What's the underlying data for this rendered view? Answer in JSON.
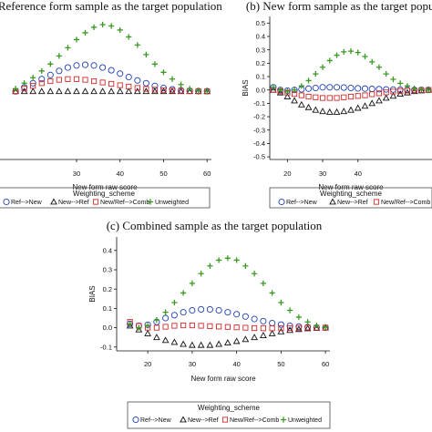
{
  "chart_data": [
    {
      "id": "a",
      "type": "scatter",
      "title": "(a) Reference form sample as the target population",
      "xlabel": "New form raw score",
      "ylabel": "",
      "xticks": [
        30,
        40,
        50,
        60
      ],
      "yticks": [],
      "xlim": [
        12,
        61
      ],
      "ylim": [
        -0.5,
        0.55
      ],
      "legend_title": "Weighting_scheme",
      "legend_position": "bottom",
      "legend": [
        "Ref-->New",
        "New-->Ref",
        "New/Ref-->Comb",
        "Unweighted"
      ],
      "x": [
        16,
        18,
        20,
        22,
        24,
        26,
        28,
        30,
        32,
        34,
        36,
        38,
        40,
        42,
        44,
        46,
        48,
        50,
        52,
        54,
        56,
        58,
        60
      ],
      "series": [
        {
          "name": "Ref-->New",
          "marker": "circle",
          "color": "#1f3fb8",
          "values": [
            0.0,
            0.03,
            0.06,
            0.09,
            0.12,
            0.15,
            0.175,
            0.19,
            0.195,
            0.19,
            0.175,
            0.155,
            0.13,
            0.105,
            0.08,
            0.06,
            0.04,
            0.025,
            0.015,
            0.008,
            0.004,
            0.002,
            0.001
          ]
        },
        {
          "name": "New-->Ref",
          "marker": "triangle",
          "color": "#111111",
          "values": [
            0.0,
            0.0,
            0.0,
            0.0,
            0.0,
            0.0,
            0.0,
            0.0,
            0.0,
            0.0,
            0.0,
            0.0,
            0.0,
            0.0,
            0.0,
            0.0,
            0.0,
            0.0,
            0.0,
            0.0,
            0.0,
            0.0,
            0.0
          ]
        },
        {
          "name": "New/Ref-->Comb",
          "marker": "square",
          "color": "#d02a2a",
          "values": [
            0.0,
            0.02,
            0.04,
            0.06,
            0.075,
            0.085,
            0.09,
            0.09,
            0.085,
            0.075,
            0.065,
            0.055,
            0.045,
            0.035,
            0.025,
            0.018,
            0.012,
            0.008,
            0.005,
            0.003,
            0.002,
            0.001,
            0.0
          ]
        },
        {
          "name": "Unweighted",
          "marker": "plus",
          "color": "#3a9a22",
          "values": [
            0.02,
            0.06,
            0.1,
            0.15,
            0.2,
            0.26,
            0.32,
            0.38,
            0.43,
            0.47,
            0.49,
            0.48,
            0.45,
            0.4,
            0.34,
            0.27,
            0.2,
            0.14,
            0.09,
            0.05,
            0.02,
            0.005,
            0.0
          ]
        }
      ]
    },
    {
      "id": "b",
      "type": "scatter",
      "title": "(b) New form sample as the target population",
      "xlabel": "New form raw score",
      "ylabel": "BIAS",
      "xticks": [
        20,
        30,
        40
      ],
      "yticks": [
        -0.5,
        -0.4,
        -0.3,
        -0.2,
        -0.1,
        0.0,
        0.1,
        0.2,
        0.3,
        0.4,
        0.5
      ],
      "xlim": [
        15,
        61
      ],
      "ylim": [
        -0.52,
        0.55
      ],
      "legend_title": "Weighting_scheme",
      "legend_position": "bottom",
      "legend": [
        "Ref-->New",
        "New-->Ref",
        "New/Ref-->Comb"
      ],
      "x": [
        16,
        18,
        20,
        22,
        24,
        26,
        28,
        30,
        32,
        34,
        36,
        38,
        40,
        42,
        44,
        46,
        48,
        50,
        52,
        54,
        56,
        58,
        60
      ],
      "series": [
        {
          "name": "Ref-->New",
          "marker": "circle",
          "color": "#1f3fb8",
          "values": [
            0.02,
            0.0,
            -0.005,
            0.0,
            0.005,
            0.01,
            0.015,
            0.02,
            0.02,
            0.02,
            0.018,
            0.015,
            0.012,
            0.01,
            0.008,
            0.006,
            0.004,
            0.003,
            0.002,
            0.001,
            0.0,
            0.0,
            0.0
          ]
        },
        {
          "name": "New-->Ref",
          "marker": "triangle",
          "color": "#111111",
          "values": [
            0.0,
            -0.02,
            -0.05,
            -0.08,
            -0.11,
            -0.13,
            -0.15,
            -0.16,
            -0.165,
            -0.165,
            -0.16,
            -0.15,
            -0.135,
            -0.12,
            -0.1,
            -0.08,
            -0.06,
            -0.045,
            -0.03,
            -0.02,
            -0.01,
            -0.005,
            0.0
          ]
        },
        {
          "name": "New/Ref-->Comb",
          "marker": "square",
          "color": "#d02a2a",
          "values": [
            0.0,
            -0.01,
            -0.02,
            -0.03,
            -0.04,
            -0.05,
            -0.055,
            -0.06,
            -0.06,
            -0.06,
            -0.055,
            -0.05,
            -0.045,
            -0.04,
            -0.032,
            -0.025,
            -0.018,
            -0.012,
            -0.008,
            -0.005,
            -0.003,
            -0.001,
            0.0
          ]
        },
        {
          "name": "",
          "marker": "plus",
          "color": "#3a9a22",
          "values": [
            0.02,
            0.0,
            -0.01,
            0.0,
            0.03,
            0.07,
            0.12,
            0.17,
            0.22,
            0.26,
            0.285,
            0.29,
            0.28,
            0.25,
            0.21,
            0.17,
            0.12,
            0.08,
            0.05,
            0.03,
            0.01,
            0.005,
            0.0
          ]
        }
      ]
    },
    {
      "id": "c",
      "type": "scatter",
      "title": "(c) Combined sample as the target population",
      "xlabel": "New form raw score",
      "ylabel": "BIAS",
      "xticks": [
        20,
        30,
        40,
        50,
        60
      ],
      "yticks": [
        -0.1,
        0.0,
        0.1,
        0.2,
        0.3,
        0.4
      ],
      "xlim": [
        13,
        61
      ],
      "ylim": [
        -0.12,
        0.47
      ],
      "legend_title": "Weighting_scheme",
      "legend_position": "bottom",
      "legend": [
        "Ref-->New",
        "New-->Ref",
        "New/Ref-->Comb",
        "Unweighted"
      ],
      "x": [
        16,
        18,
        20,
        22,
        24,
        26,
        28,
        30,
        32,
        34,
        36,
        38,
        40,
        42,
        44,
        46,
        48,
        50,
        52,
        54,
        56,
        58,
        60
      ],
      "series": [
        {
          "name": "Ref-->New",
          "marker": "circle",
          "color": "#1f3fb8",
          "values": [
            0.02,
            0.01,
            0.015,
            0.03,
            0.05,
            0.065,
            0.08,
            0.09,
            0.095,
            0.095,
            0.09,
            0.08,
            0.07,
            0.058,
            0.045,
            0.034,
            0.024,
            0.016,
            0.01,
            0.006,
            0.003,
            0.001,
            0.0
          ]
        },
        {
          "name": "New-->Ref",
          "marker": "triangle",
          "color": "#111111",
          "values": [
            0.01,
            -0.01,
            -0.03,
            -0.05,
            -0.065,
            -0.075,
            -0.085,
            -0.09,
            -0.09,
            -0.09,
            -0.085,
            -0.078,
            -0.07,
            -0.06,
            -0.05,
            -0.04,
            -0.03,
            -0.02,
            -0.013,
            -0.008,
            -0.004,
            -0.002,
            0.0
          ]
        },
        {
          "name": "New/Ref-->Comb",
          "marker": "square",
          "color": "#d02a2a",
          "values": [
            0.03,
            0.01,
            0.0,
            0.0,
            0.005,
            0.01,
            0.012,
            0.012,
            0.01,
            0.008,
            0.006,
            0.004,
            0.002,
            0.0,
            -0.002,
            -0.003,
            -0.003,
            -0.003,
            -0.002,
            -0.001,
            0.0,
            0.0,
            0.0
          ]
        },
        {
          "name": "Unweighted",
          "marker": "plus",
          "color": "#3a9a22",
          "values": [
            0.02,
            0.0,
            0.01,
            0.04,
            0.08,
            0.13,
            0.18,
            0.23,
            0.28,
            0.32,
            0.35,
            0.36,
            0.35,
            0.32,
            0.28,
            0.23,
            0.18,
            0.13,
            0.09,
            0.055,
            0.03,
            0.012,
            0.004
          ]
        }
      ]
    }
  ]
}
